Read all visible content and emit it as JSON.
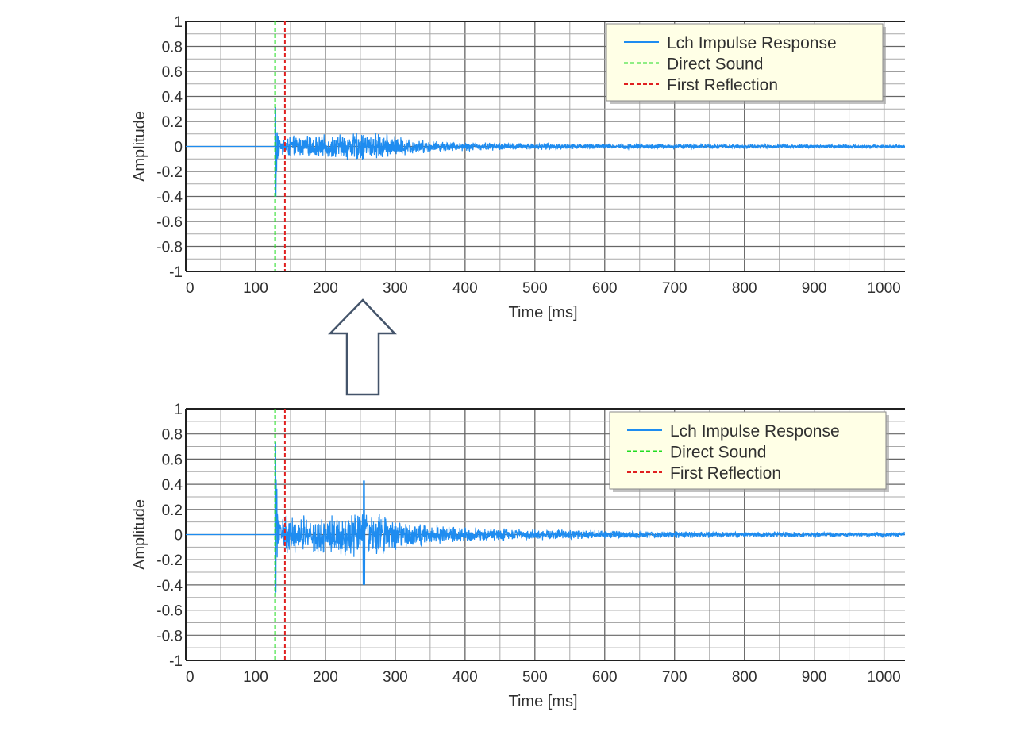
{
  "arrow": {
    "icon": "up-arrow-icon",
    "fill": "#ffffff",
    "stroke": "#44546a"
  },
  "colors": {
    "ir": "#1e8cf0",
    "direct": "#22dd22",
    "reflection": "#e02020",
    "legend_bg": "#ffffe6",
    "grid": "#a9a9a9",
    "grid_major": "#666666"
  },
  "chart_data": [
    {
      "type": "line",
      "xlabel": "Time [ms]",
      "ylabel": "Amplitude",
      "xlim": [
        0,
        1030
      ],
      "ylim": [
        -1,
        1
      ],
      "grid": true,
      "legend_position": "top-right",
      "x_ticks": [
        "0",
        "100",
        "200",
        "300",
        "400",
        "500",
        "600",
        "700",
        "800",
        "900",
        "1000"
      ],
      "y_ticks": [
        "1",
        "0.8",
        "0.6",
        "0.4",
        "0.2",
        "0",
        "-0.2",
        "-0.4",
        "-0.6",
        "-0.8",
        "-1"
      ],
      "series": [
        {
          "name": "Lch Impulse Response",
          "style": "solid",
          "envelope": {
            "onset_ms": 128,
            "direct_peak": [
              0.35,
              -0.42
            ],
            "early_noise_amp": 0.06,
            "mid_noise_amp": 0.09,
            "mid_center_ms": 260,
            "decay_tail_amp": 0.012
          }
        },
        {
          "name": "Direct Sound",
          "style": "dashed",
          "x": 128
        },
        {
          "name": "First Reflection",
          "style": "dashed",
          "x": 142
        }
      ]
    },
    {
      "type": "line",
      "xlabel": "Time [ms]",
      "ylabel": "Amplitude",
      "xlim": [
        0,
        1030
      ],
      "ylim": [
        -1,
        1
      ],
      "grid": true,
      "legend_position": "top-right",
      "x_ticks": [
        "0",
        "100",
        "200",
        "300",
        "400",
        "500",
        "600",
        "700",
        "800",
        "900",
        "1000"
      ],
      "y_ticks": [
        "1",
        "0.8",
        "0.6",
        "0.4",
        "0.2",
        "0",
        "-0.2",
        "-0.4",
        "-0.6",
        "-0.8",
        "-1"
      ],
      "series": [
        {
          "name": "Lch Impulse Response",
          "style": "solid",
          "envelope": {
            "onset_ms": 128,
            "direct_peak": [
              0.82,
              -0.5
            ],
            "early_noise_amp": 0.12,
            "mid_noise_amp": 0.15,
            "mid_center_ms": 260,
            "spike_ms": 255,
            "spike_peak": [
              0.43,
              -0.4
            ],
            "decay_tail_amp": 0.014
          }
        },
        {
          "name": "Direct Sound",
          "style": "dashed",
          "x": 128
        },
        {
          "name": "First Reflection",
          "style": "dashed",
          "x": 142
        }
      ]
    }
  ]
}
